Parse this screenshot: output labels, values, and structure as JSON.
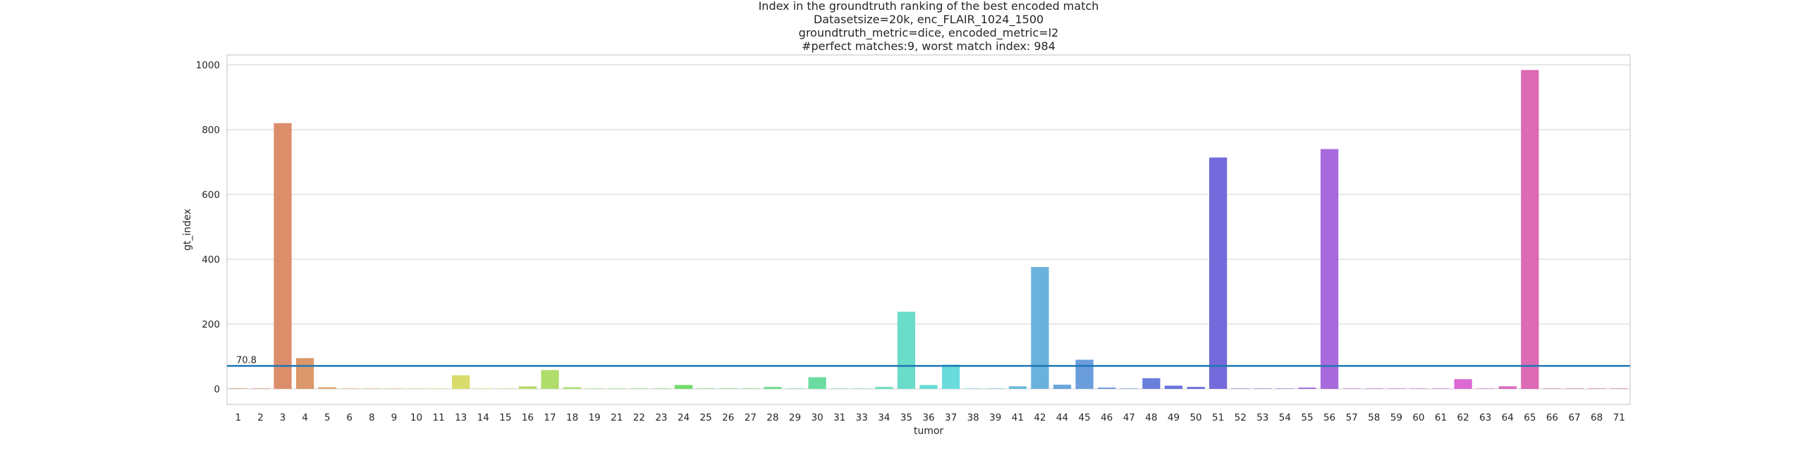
{
  "chart_data": {
    "type": "bar",
    "title_lines": [
      "Index in the groundtruth ranking of the best encoded match",
      "Datasetsize=20k, enc_FLAIR_1024_1500",
      "groundtruth_metric=dice, encoded_metric=l2",
      "#perfect matches:9, worst match index: 984"
    ],
    "xlabel": "tumor",
    "ylabel": "gt_index",
    "ylim": [
      -50,
      1035
    ],
    "yticks": [
      0,
      200,
      400,
      600,
      800,
      1000
    ],
    "grid": true,
    "categories": [
      "1",
      "2",
      "3",
      "4",
      "5",
      "6",
      "8",
      "9",
      "10",
      "11",
      "13",
      "14",
      "15",
      "16",
      "17",
      "18",
      "19",
      "21",
      "22",
      "23",
      "24",
      "25",
      "26",
      "27",
      "28",
      "29",
      "30",
      "31",
      "33",
      "34",
      "35",
      "36",
      "37",
      "38",
      "39",
      "41",
      "42",
      "44",
      "45",
      "46",
      "47",
      "48",
      "49",
      "50",
      "51",
      "52",
      "53",
      "54",
      "55",
      "56",
      "57",
      "58",
      "59",
      "60",
      "61",
      "62",
      "63",
      "64",
      "65",
      "66",
      "67",
      "68",
      "71"
    ],
    "values": [
      0,
      0,
      820,
      95,
      5,
      1,
      1,
      1,
      1,
      1,
      42,
      1,
      1,
      8,
      58,
      5,
      1,
      1,
      1,
      1,
      12,
      1,
      1,
      1,
      6,
      1,
      36,
      1,
      1,
      6,
      238,
      12,
      75,
      1,
      1,
      8,
      376,
      13,
      90,
      4,
      1,
      33,
      10,
      6,
      714,
      1,
      1,
      1,
      4,
      740,
      1,
      1,
      1,
      1,
      1,
      30,
      1,
      8,
      984,
      1,
      1,
      1,
      1
    ],
    "reference_line": {
      "value": 70.8,
      "label": "70.8",
      "color": "#1f77b4"
    }
  }
}
